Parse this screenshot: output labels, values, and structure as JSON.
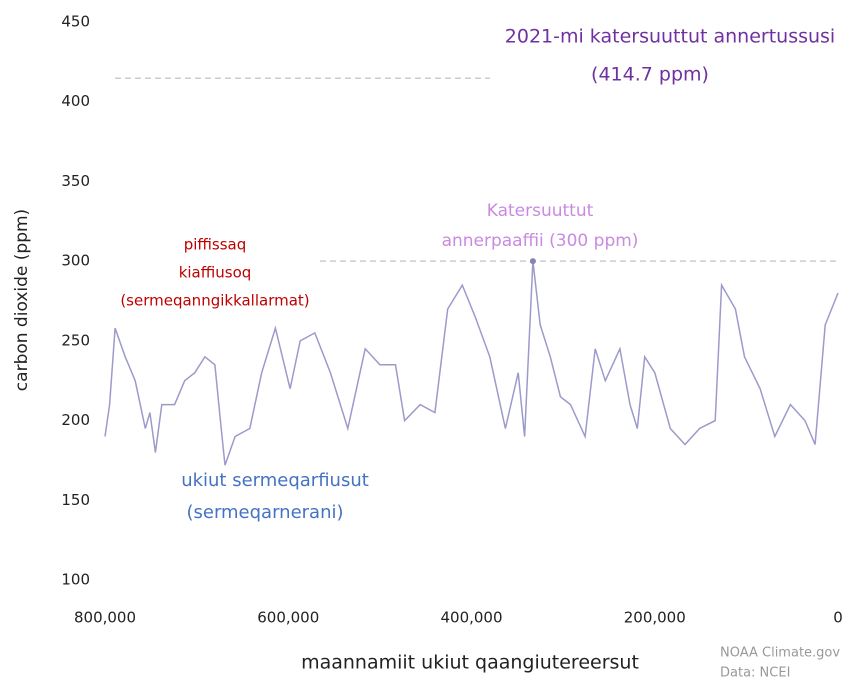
{
  "chart_data": {
    "type": "line",
    "xlabel": "maannamiit ukiut qaangiutereersut",
    "ylabel": "carbon dioxide (ppm)",
    "x": [
      800000,
      795000,
      789000,
      778000,
      767000,
      756000,
      751000,
      745000,
      738000,
      724000,
      713000,
      702000,
      691000,
      680000,
      674000,
      669000,
      658000,
      642000,
      629000,
      614000,
      598000,
      587000,
      571000,
      554000,
      535000,
      516000,
      500000,
      483000,
      473000,
      456000,
      440000,
      426000,
      410000,
      396000,
      380000,
      363000,
      349000,
      342000,
      333000,
      325000,
      314000,
      303000,
      292000,
      276000,
      265000,
      254000,
      238000,
      227000,
      219000,
      211000,
      200000,
      183000,
      167000,
      151000,
      134000,
      127000,
      112000,
      102000,
      85000,
      69000,
      52000,
      36000,
      25000,
      14000,
      7000,
      0
    ],
    "values": [
      190,
      210,
      258,
      240,
      225,
      195,
      205,
      180,
      210,
      210,
      225,
      230,
      240,
      235,
      200,
      172,
      190,
      195,
      230,
      258,
      220,
      250,
      255,
      230,
      195,
      245,
      235,
      235,
      200,
      210,
      205,
      270,
      285,
      265,
      240,
      195,
      230,
      190,
      300,
      260,
      240,
      215,
      210,
      190,
      245,
      225,
      245,
      210,
      195,
      240,
      230,
      195,
      185,
      195,
      200,
      285,
      270,
      240,
      220,
      190,
      210,
      200,
      185,
      260,
      270,
      280
    ],
    "color": "#9c9acb",
    "xlim": [
      800000,
      0
    ],
    "xticks": [
      {
        "value": 800000,
        "label": "800,000"
      },
      {
        "value": 600000,
        "label": "600,000"
      },
      {
        "value": 400000,
        "label": "400,000"
      },
      {
        "value": 200000,
        "label": "200,000"
      },
      0
    ],
    "ylim": [
      100,
      450
    ],
    "yticks": [
      100,
      150,
      200,
      250,
      300,
      350,
      400,
      450
    ],
    "reference_lines": [
      {
        "value": 414.7
      },
      {
        "value": 300
      }
    ],
    "peak_marker": {
      "x": 333000,
      "value": 300
    },
    "annotations": [
      {
        "text": "2021-mi katersuuttut annertussusi",
        "color": "#7030a0"
      },
      {
        "text": "(414.7 ppm)",
        "color": "#7030a0"
      },
      {
        "text": "Katersuuttut",
        "color": "#c98ae0"
      },
      {
        "text": "annerpaaffii (300 ppm)",
        "color": "#c98ae0"
      },
      {
        "text": "piffissaq",
        "color": "#c00000"
      },
      {
        "text": "kiaffiusoq",
        "color": "#c00000"
      },
      {
        "text": "(sermeqanngikkallarmat)",
        "color": "#c00000"
      },
      {
        "text": "ukiut sermeqarfiusut",
        "color": "#4472c4"
      },
      {
        "text": "(sermeqarnerani)",
        "color": "#4472c4"
      }
    ],
    "credits": [
      "NOAA Climate.gov",
      "Data: NCEI"
    ]
  }
}
